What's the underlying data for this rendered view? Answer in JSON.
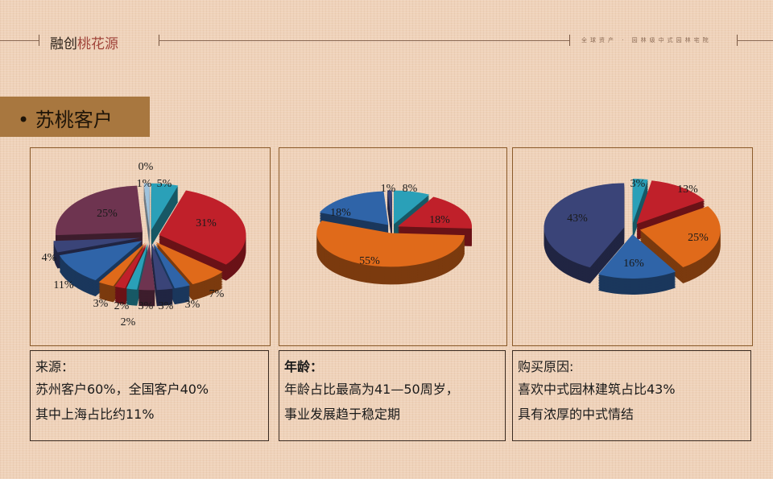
{
  "header": {
    "brand_a": "融创",
    "brand_b": "桃花源",
    "tagline": "全球资产 · 园林级中式园林宅院"
  },
  "section_title": "• 苏桃客户",
  "colors": {
    "teal": "#2aa0b8",
    "red": "#c0202a",
    "orange": "#e06a1a",
    "blue": "#2f64a8",
    "navy": "#3a4478",
    "plum": "#6e3450",
    "white": "#dfe6ee",
    "lightblue": "#9fc3dd"
  },
  "chart_data": [
    {
      "type": "pie",
      "title": "",
      "values": [
        5,
        31,
        7,
        3,
        3,
        3,
        2,
        2,
        3,
        11,
        4,
        25,
        0,
        1
      ],
      "labels": [
        "5%",
        "31%",
        "7%",
        "3%",
        "3%",
        "3%",
        "2%",
        "2%",
        "3%",
        "11%",
        "4%",
        "25%",
        "0%",
        "1%"
      ],
      "colors": [
        "teal",
        "red",
        "orange",
        "blue",
        "navy",
        "plum",
        "teal",
        "red",
        "orange",
        "blue",
        "navy",
        "plum",
        "white",
        "lightblue"
      ]
    },
    {
      "type": "pie",
      "title": "",
      "values": [
        8,
        18,
        55,
        18,
        1
      ],
      "labels": [
        "8%",
        "18%",
        "55%",
        "18%",
        "1%"
      ],
      "colors": [
        "teal",
        "red",
        "orange",
        "blue",
        "navy"
      ]
    },
    {
      "type": "pie",
      "title": "",
      "values": [
        3,
        13,
        25,
        16,
        43
      ],
      "labels": [
        "3%",
        "13%",
        "25%",
        "16%",
        "43%"
      ],
      "colors": [
        "teal",
        "red",
        "orange",
        "blue",
        "navy"
      ]
    }
  ],
  "boxes": [
    {
      "heading": "来源：",
      "lines": [
        "苏州客户60%，全国客户40%",
        "其中上海占比约11%"
      ]
    },
    {
      "heading": "年龄：",
      "lines": [
        "年龄占比最高为41—50周岁，",
        "事业发展趋于稳定期"
      ]
    },
    {
      "heading": "购买原因:",
      "lines": [
        "喜欢中式园林建筑占比43%",
        "具有浓厚的中式情结"
      ]
    }
  ]
}
